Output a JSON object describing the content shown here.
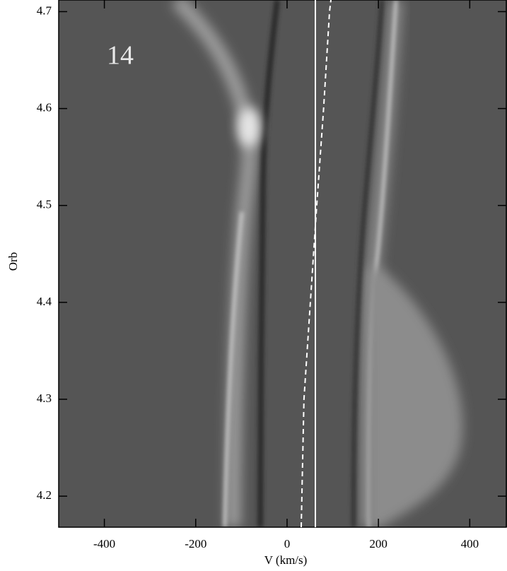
{
  "chart_data": {
    "type": "line",
    "annotation": "14",
    "xlabel": "V (km/s)",
    "ylabel": "Orb",
    "xlim": [
      -500,
      480
    ],
    "ylim": [
      4.168,
      4.712
    ],
    "xticks": [
      -400,
      -200,
      0,
      200,
      400
    ],
    "yticks": [
      4.2,
      4.3,
      4.4,
      4.5,
      4.6,
      4.7
    ],
    "series": [
      {
        "color": "#ffffff",
        "style": "dashed",
        "x": [
          31,
          37,
          51,
          65,
          80,
          93,
          96
        ],
        "values": [
          4.168,
          4.3,
          4.4,
          4.5,
          4.6,
          4.7,
          4.712
        ]
      },
      {
        "color": "#ffffff",
        "style": "solid",
        "x": [
          62,
          62
        ],
        "values": [
          4.168,
          4.712
        ]
      }
    ]
  }
}
